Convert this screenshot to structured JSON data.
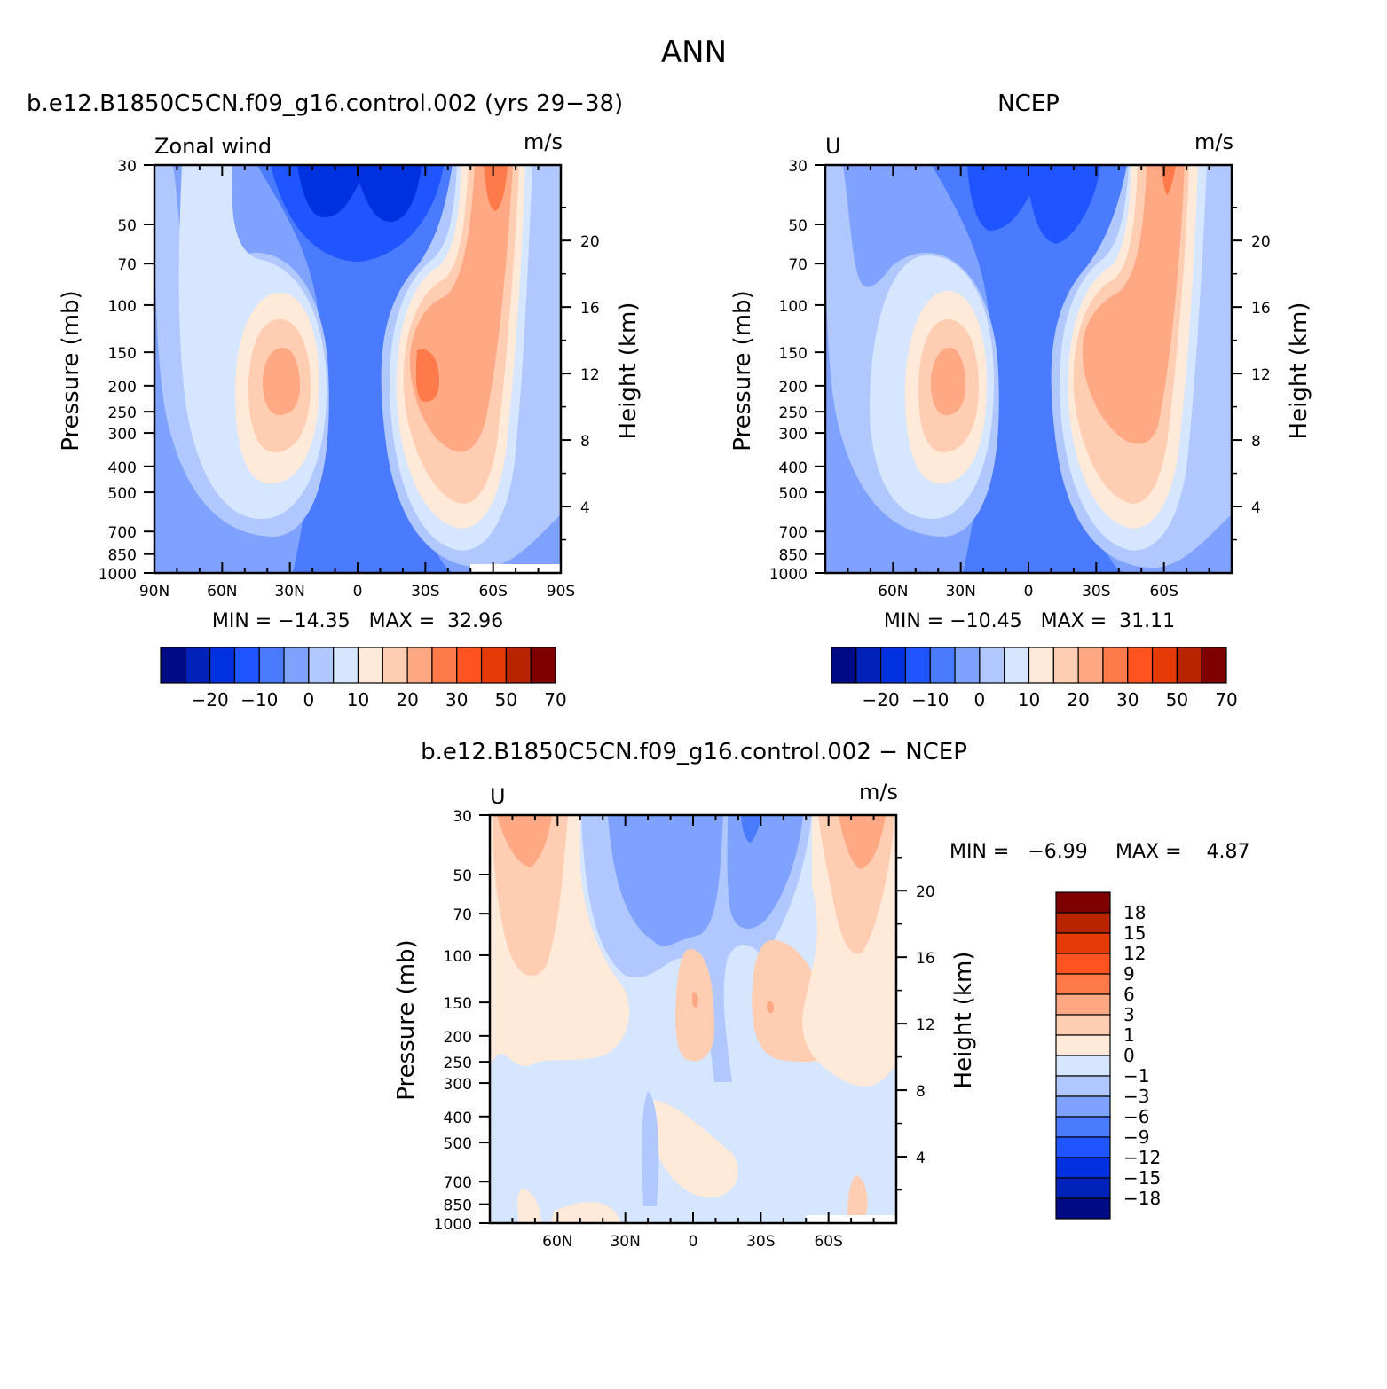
{
  "figure": {
    "title": "ANN",
    "diff_title": "b.e12.B1850C5CN.f09_g16.control.002 − NCEP"
  },
  "chart_data": [
    {
      "type": "heatmap",
      "id": "model",
      "title": "b.e12.B1850C5CN.f09_g16.control.002 (yrs 29−38)",
      "left_label": "Zonal wind",
      "units": "m/s",
      "ylabel": "Pressure (mb)",
      "ylabel_right": "Height (km)",
      "y_ticks": [
        "30",
        "50",
        "70",
        "100",
        "150",
        "200",
        "250",
        "300",
        "400",
        "500",
        "700",
        "850",
        "1000"
      ],
      "height_ticks": [
        "20",
        "16",
        "12",
        "8",
        "4"
      ],
      "x_ticks": [
        "90N",
        "60N",
        "30N",
        "0",
        "30S",
        "60S",
        "90S"
      ],
      "stats": "MIN = −14.35   MAX =  32.96",
      "min": -14.35,
      "max": 32.96,
      "jet_south_max": 30,
      "jet_north_max": 25
    },
    {
      "type": "heatmap",
      "id": "obs",
      "title": "NCEP",
      "left_label": "U",
      "units": "m/s",
      "ylabel": "Pressure (mb)",
      "ylabel_right": "Height (km)",
      "y_ticks": [
        "30",
        "50",
        "70",
        "100",
        "150",
        "200",
        "250",
        "300",
        "400",
        "500",
        "700",
        "850",
        "1000"
      ],
      "height_ticks": [
        "20",
        "16",
        "12",
        "8",
        "4"
      ],
      "x_ticks": [
        "60N",
        "30N",
        "0",
        "30S",
        "60S"
      ],
      "stats": "MIN = −10.45   MAX =  31.11",
      "min": -10.45,
      "max": 31.11,
      "jet_south_max": 28,
      "jet_north_max": 24
    },
    {
      "type": "heatmap",
      "id": "diff",
      "title": "b.e12.B1850C5CN.f09_g16.control.002 − NCEP",
      "left_label": "U",
      "units": "m/s",
      "ylabel": "Pressure (mb)",
      "ylabel_right": "Height (km)",
      "y_ticks": [
        "30",
        "50",
        "70",
        "100",
        "150",
        "200",
        "250",
        "300",
        "400",
        "500",
        "700",
        "850",
        "1000"
      ],
      "height_ticks": [
        "20",
        "16",
        "12",
        "8",
        "4"
      ],
      "x_ticks": [
        "60N",
        "30N",
        "0",
        "30S",
        "60S"
      ],
      "stats_min": "MIN =   −6.99",
      "stats_max": "MAX =    4.87",
      "min": -6.99,
      "max": 4.87
    }
  ],
  "colorbar_main": {
    "colors": [
      "#000b85",
      "#0022b8",
      "#0031e0",
      "#1f55ff",
      "#4a7bff",
      "#7fa2ff",
      "#b1c8ff",
      "#d6e6ff",
      "#ffe9d8",
      "#ffcdb2",
      "#ffa884",
      "#ff7a4a",
      "#ff5420",
      "#e53a06",
      "#b82300",
      "#7f0000"
    ],
    "labels": [
      "−20",
      "−10",
      "0",
      "10",
      "20",
      "30",
      "50",
      "70"
    ]
  },
  "colorbar_diff": {
    "colors": [
      "#7f0000",
      "#b82300",
      "#e53a06",
      "#ff5420",
      "#ff7a4a",
      "#ffa884",
      "#ffcdb2",
      "#ffe9d8",
      "#d6e6ff",
      "#b1c8ff",
      "#7fa2ff",
      "#4a7bff",
      "#1f55ff",
      "#0031e0",
      "#0022b8",
      "#000b85"
    ],
    "labels": [
      "18",
      "15",
      "12",
      "9",
      "6",
      "3",
      "1",
      "0",
      "−1",
      "−3",
      "−6",
      "−9",
      "−12",
      "−15",
      "−18"
    ]
  }
}
